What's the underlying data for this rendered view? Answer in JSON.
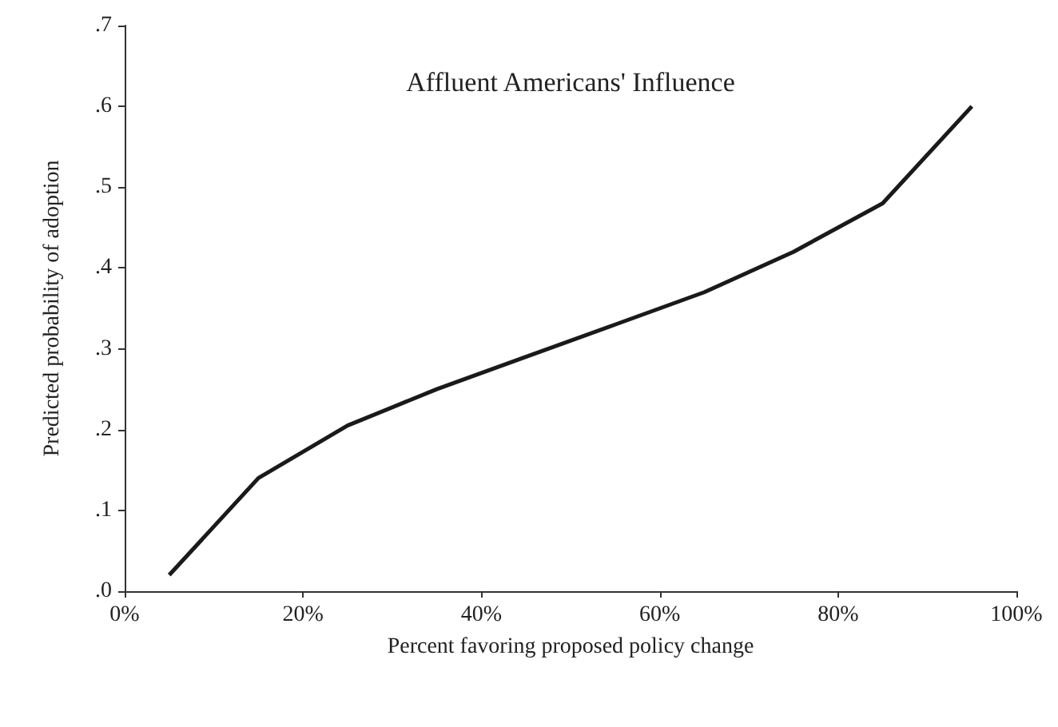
{
  "chart_data": {
    "type": "line",
    "title": "Affluent Americans' Influence",
    "xlabel": "Percent favoring proposed policy change",
    "ylabel": "Predicted probability of adoption",
    "x": [
      5,
      15,
      25,
      35,
      45,
      55,
      65,
      75,
      85,
      95
    ],
    "series": [
      {
        "color": "#1a1a1a",
        "values": [
          0.02,
          0.14,
          0.205,
          0.25,
          0.29,
          0.33,
          0.37,
          0.42,
          0.48,
          0.6
        ]
      }
    ],
    "xlim": [
      0,
      100
    ],
    "xticks": [
      {
        "value": 0,
        "label": "0%"
      },
      {
        "value": 20,
        "label": "20%"
      },
      {
        "value": 40,
        "label": "40%"
      },
      {
        "value": 60,
        "label": "60%"
      },
      {
        "value": 80,
        "label": "80%"
      },
      {
        "value": 100,
        "label": "100%"
      }
    ],
    "ylim": [
      0,
      0.7
    ],
    "yticks": [
      {
        "value": 0,
        "label": ".0"
      },
      {
        "value": 0.1,
        "label": ".1"
      },
      {
        "value": 0.2,
        "label": ".2"
      },
      {
        "value": 0.3,
        "label": ".3"
      },
      {
        "value": 0.4,
        "label": ".4"
      },
      {
        "value": 0.5,
        "label": ".5"
      },
      {
        "value": 0.6,
        "label": ".6"
      },
      {
        "value": 0.7,
        "label": ".7"
      }
    ],
    "grid": false,
    "marker": "none",
    "line_style": "solid"
  }
}
